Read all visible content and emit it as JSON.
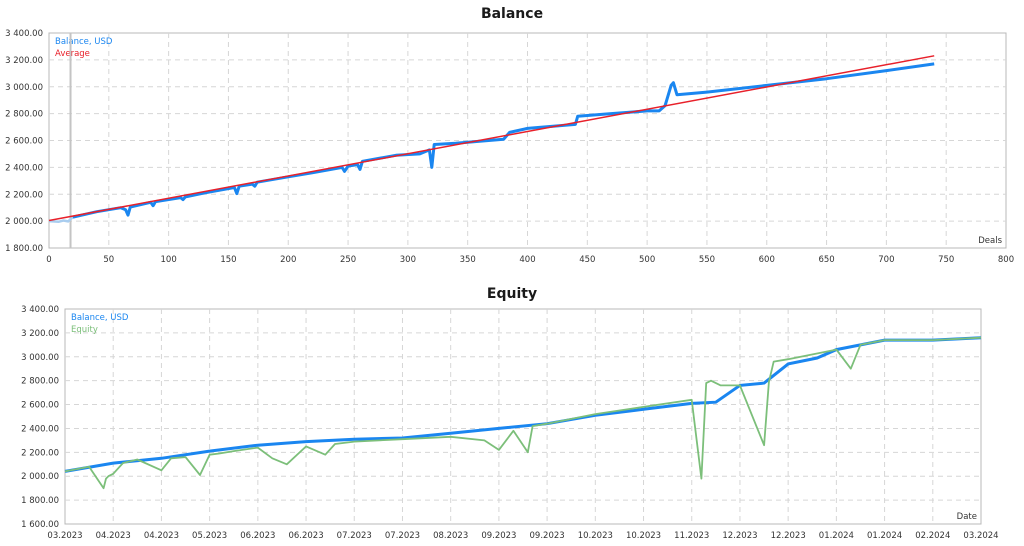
{
  "colors": {
    "balance": "#1a86f0",
    "average": "#e8202a",
    "equity": "#7cbf7a",
    "grid": "#d6d6d6",
    "frame": "#b8b8b8",
    "text": "#333333"
  },
  "balance_chart": {
    "title": "Balance",
    "legend": [
      "Balance, USD",
      "Average"
    ],
    "x_axis_name": "Deals",
    "y_ticks": [
      "3 400.00",
      "3 200.00",
      "3 000.00",
      "2 800.00",
      "2 600.00",
      "2 400.00",
      "2 200.00",
      "2 000.00",
      "1 800.00"
    ],
    "x_ticks": [
      "0",
      "50",
      "100",
      "150",
      "200",
      "250",
      "300",
      "350",
      "400",
      "450",
      "500",
      "550",
      "600",
      "650",
      "700",
      "750",
      "800"
    ]
  },
  "equity_chart": {
    "title": "Equity",
    "legend": [
      "Balance, USD",
      "Equity"
    ],
    "x_axis_name": "Date",
    "y_ticks": [
      "3 400.00",
      "3 200.00",
      "3 000.00",
      "2 800.00",
      "2 600.00",
      "2 400.00",
      "2 200.00",
      "2 000.00",
      "1 800.00",
      "1 600.00"
    ],
    "x_ticks": [
      "03.2023",
      "04.2023",
      "04.2023",
      "05.2023",
      "06.2023",
      "06.2023",
      "07.2023",
      "07.2023",
      "08.2023",
      "09.2023",
      "09.2023",
      "10.2023",
      "10.2023",
      "11.2023",
      "12.2023",
      "12.2023",
      "01.2024",
      "01.2024",
      "02.2024",
      "03.2024"
    ]
  },
  "chart_data": [
    {
      "type": "line",
      "title": "Balance",
      "xlabel": "Deals",
      "ylabel": "Balance, USD",
      "xlim": [
        0,
        800
      ],
      "ylim": [
        1800,
        3400
      ],
      "grid": true,
      "legend_position": "top-left",
      "series": [
        {
          "name": "Balance, USD",
          "x": [
            0,
            20,
            40,
            60,
            64,
            66,
            68,
            85,
            87,
            89,
            110,
            112,
            114,
            130,
            155,
            157,
            159,
            170,
            172,
            174,
            200,
            220,
            245,
            247,
            250,
            258,
            260,
            262,
            290,
            310,
            318,
            320,
            322,
            340,
            380,
            385,
            400,
            440,
            442,
            470,
            500,
            510,
            515,
            520,
            522,
            525,
            550,
            600,
            650,
            700,
            740
          ],
          "y": [
            2000,
            2030,
            2070,
            2100,
            2085,
            2045,
            2105,
            2140,
            2115,
            2145,
            2175,
            2160,
            2180,
            2210,
            2250,
            2205,
            2260,
            2275,
            2260,
            2290,
            2330,
            2360,
            2400,
            2370,
            2410,
            2420,
            2385,
            2445,
            2490,
            2500,
            2530,
            2400,
            2570,
            2580,
            2610,
            2660,
            2690,
            2720,
            2780,
            2800,
            2820,
            2820,
            2860,
            3010,
            3030,
            2940,
            2960,
            3010,
            3060,
            3120,
            3170
          ]
        },
        {
          "name": "Average",
          "x": [
            0,
            740
          ],
          "y": [
            2005,
            3230
          ]
        }
      ]
    },
    {
      "type": "line",
      "title": "Equity",
      "xlabel": "Date",
      "ylabel": "USD",
      "ylim": [
        1600,
        3400
      ],
      "grid": true,
      "legend_position": "top-left",
      "x_tick_labels": [
        "03.2023",
        "04.2023",
        "04.2023",
        "05.2023",
        "06.2023",
        "06.2023",
        "07.2023",
        "07.2023",
        "08.2023",
        "09.2023",
        "09.2023",
        "10.2023",
        "10.2023",
        "11.2023",
        "12.2023",
        "12.2023",
        "01.2024",
        "01.2024",
        "02.2024",
        "03.2024"
      ],
      "series": [
        {
          "name": "Balance, USD",
          "x_index": [
            0,
            1,
            2,
            3,
            4,
            5,
            6,
            7,
            8,
            9,
            10,
            11,
            12,
            13,
            13.5,
            14,
            14.5,
            15,
            15.6,
            16,
            17,
            18,
            19
          ],
          "y": [
            2040,
            2110,
            2150,
            2210,
            2260,
            2290,
            2310,
            2320,
            2360,
            2400,
            2440,
            2510,
            2560,
            2610,
            2620,
            2760,
            2780,
            2940,
            2990,
            3060,
            3140,
            3140,
            3160
          ]
        },
        {
          "name": "Equity",
          "x_index": [
            0,
            0.5,
            0.8,
            0.85,
            0.9,
            1.0,
            1.2,
            1.5,
            2.0,
            2.2,
            2.5,
            2.8,
            3.0,
            3.2,
            3.5,
            4.0,
            4.3,
            4.6,
            5.0,
            5.4,
            5.6,
            6.0,
            7.0,
            8.0,
            8.7,
            9.0,
            9.3,
            9.6,
            9.7,
            10.0,
            11.0,
            12.0,
            13.0,
            13.2,
            13.3,
            13.4,
            13.6,
            14.0,
            14.5,
            14.6,
            14.7,
            15.0,
            16.0,
            16.3,
            16.5,
            17.0,
            18.0,
            19.0
          ],
          "y": [
            2040,
            2080,
            1900,
            1980,
            2000,
            2020,
            2110,
            2140,
            2050,
            2150,
            2160,
            2010,
            2180,
            2190,
            2210,
            2240,
            2150,
            2100,
            2250,
            2180,
            2270,
            2290,
            2310,
            2330,
            2300,
            2220,
            2380,
            2200,
            2420,
            2440,
            2520,
            2580,
            2640,
            1980,
            2780,
            2800,
            2760,
            2760,
            2260,
            2790,
            2960,
            2980,
            3060,
            2900,
            3100,
            3140,
            3140,
            3160
          ]
        }
      ]
    }
  ]
}
